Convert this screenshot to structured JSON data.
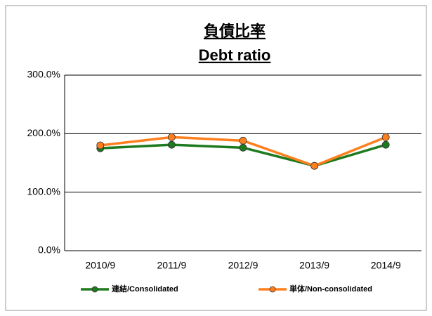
{
  "chart_data": {
    "type": "line",
    "title": "負債比率",
    "subtitle": "Debt ratio",
    "categories": [
      "2010/9",
      "2011/9",
      "2012/9",
      "2013/9",
      "2014/9"
    ],
    "series": [
      {
        "name": "連結/Consolidated",
        "color": "#1e7a1e",
        "values": [
          175,
          181,
          176,
          145,
          181
        ]
      },
      {
        "name": "単体/Non-consolidated",
        "color": "#ff7f1e",
        "values": [
          180,
          194,
          188,
          145,
          194
        ]
      }
    ],
    "ylim": [
      0,
      300
    ],
    "yticks": [
      {
        "value": 0,
        "label": "0.0%"
      },
      {
        "value": 100,
        "label": "100.0%"
      },
      {
        "value": 200,
        "label": "200.0%"
      },
      {
        "value": 300,
        "label": "300.0%"
      }
    ],
    "grid": true,
    "legend": "bottom"
  }
}
